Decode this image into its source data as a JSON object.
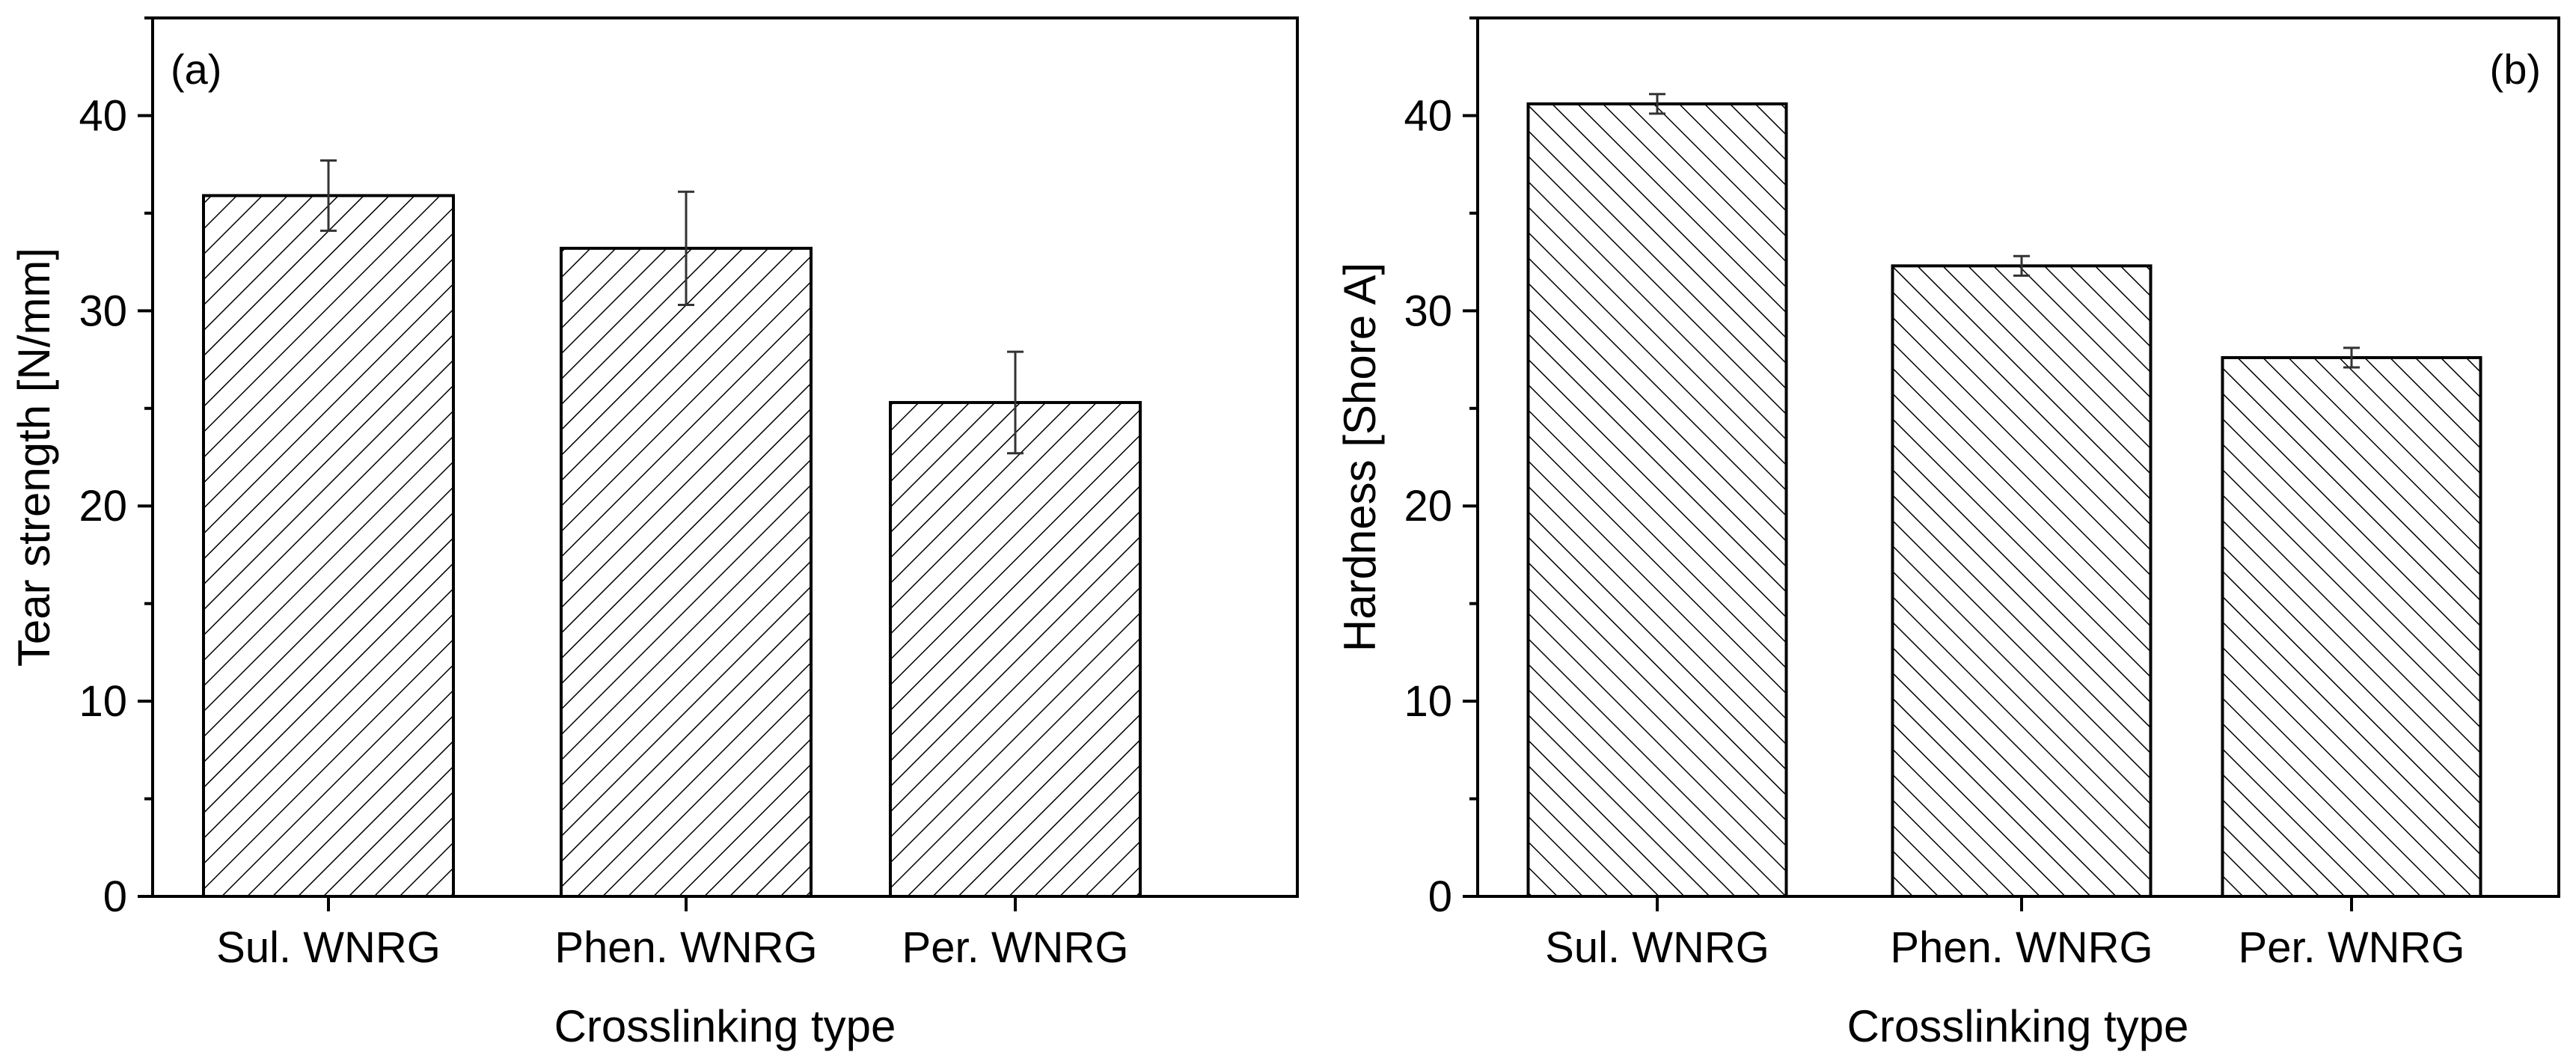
{
  "chart_data": [
    {
      "type": "bar",
      "panel_label": "(a)",
      "categories": [
        "Sul. WNRG",
        "Phen. WNRG",
        "Per. WNRG"
      ],
      "values": [
        35.9,
        33.2,
        25.3
      ],
      "errors": [
        1.8,
        2.9,
        2.6
      ],
      "xlabel": "Crosslinking type",
      "ylabel": "Tear strength [N/mm]",
      "ylim": [
        0,
        45
      ],
      "yticks": [
        0,
        10,
        20,
        30,
        40
      ],
      "hatch": "forward-diagonal",
      "bar_fill": "#ffffff",
      "line_color": "#000000",
      "grid": false
    },
    {
      "type": "bar",
      "panel_label": "(b)",
      "categories": [
        "Sul. WNRG",
        "Phen. WNRG",
        "Per. WNRG"
      ],
      "values": [
        40.6,
        32.3,
        27.6
      ],
      "errors": [
        0.5,
        0.5,
        0.5
      ],
      "xlabel": "Crosslinking type",
      "ylabel": "Hardness [Shore A]",
      "ylim": [
        0,
        45
      ],
      "yticks": [
        0,
        10,
        20,
        30,
        40
      ],
      "hatch": "backward-diagonal",
      "bar_fill": "#ffffff",
      "line_color": "#000000",
      "grid": false
    }
  ]
}
